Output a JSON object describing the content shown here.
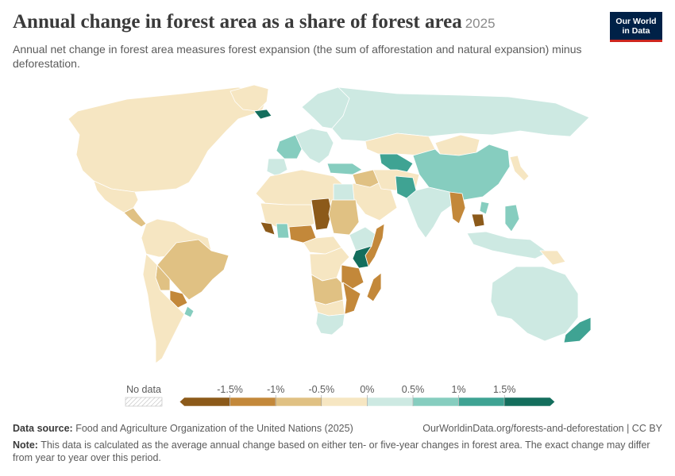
{
  "header": {
    "title": "Annual change in forest area as a share of forest area",
    "year": "2025",
    "subtitle": "Annual net change in forest area measures forest expansion (the sum of afforestation and natural expansion) minus deforestation."
  },
  "logo": {
    "line1": "Our World",
    "line2": "in Data"
  },
  "legend": {
    "no_data_label": "No data",
    "tick_labels": [
      "-1.5%",
      "-1%",
      "-0.5%",
      "0%",
      "0.5%",
      "1%",
      "1.5%"
    ],
    "bins": [
      {
        "range": "< -1.5%",
        "color": "#8c5a1a"
      },
      {
        "range": "-1.5% to -1%",
        "color": "#c3883a"
      },
      {
        "range": "-1% to -0.5%",
        "color": "#e0c183"
      },
      {
        "range": "-0.5% to 0%",
        "color": "#f6e6c2"
      },
      {
        "range": "0% to 0.5%",
        "color": "#cde9e2"
      },
      {
        "range": "0.5% to 1%",
        "color": "#86cdbf"
      },
      {
        "range": "1% to 1.5%",
        "color": "#3fa393"
      },
      {
        "range": "> 1.5%",
        "color": "#146e5d"
      }
    ]
  },
  "footer": {
    "source_label": "Data source:",
    "source_text": "Food and Agriculture Organization of the United Nations (2025)",
    "url": "OurWorldinData.org/forests-and-deforestation | CC BY",
    "note_label": "Note:",
    "note_text": "This data is calculated as the average annual change based on either ten- or five-year changes in forest area. The exact change may differ from year to year over this period."
  },
  "regions": [
    {
      "name": "Canada / USA",
      "bin": 3
    },
    {
      "name": "Greenland",
      "bin": 3
    },
    {
      "name": "Mexico",
      "bin": 3
    },
    {
      "name": "Central America",
      "bin": 2
    },
    {
      "name": "Northern South America",
      "bin": 3
    },
    {
      "name": "Brazil",
      "bin": 2
    },
    {
      "name": "Bolivia",
      "bin": 2
    },
    {
      "name": "Paraguay",
      "bin": 1
    },
    {
      "name": "Uruguay",
      "bin": 5
    },
    {
      "name": "Argentina / Chile",
      "bin": 3
    },
    {
      "name": "Iceland",
      "bin": 7
    },
    {
      "name": "Scandinavia",
      "bin": 4
    },
    {
      "name": "Western Europe",
      "bin": 4
    },
    {
      "name": "France",
      "bin": 5
    },
    {
      "name": "Spain",
      "bin": 4
    },
    {
      "name": "Russia",
      "bin": 4
    },
    {
      "name": "Turkey",
      "bin": 5
    },
    {
      "name": "Caucasus / Central Asia",
      "bin": 6
    },
    {
      "name": "Kazakhstan",
      "bin": 3
    },
    {
      "name": "Mongolia",
      "bin": 3
    },
    {
      "name": "China",
      "bin": 5
    },
    {
      "name": "Korea / Japan",
      "bin": 3
    },
    {
      "name": "Middle East",
      "bin": 3
    },
    {
      "name": "Iraq / Syria",
      "bin": 2
    },
    {
      "name": "Iran / Afghanistan",
      "bin": 3
    },
    {
      "name": "Pakistan",
      "bin": 6
    },
    {
      "name": "India",
      "bin": 4
    },
    {
      "name": "Myanmar",
      "bin": 1
    },
    {
      "name": "Cambodia",
      "bin": 0
    },
    {
      "name": "Vietnam",
      "bin": 5
    },
    {
      "name": "Philippines",
      "bin": 5
    },
    {
      "name": "Indonesia",
      "bin": 4
    },
    {
      "name": "Papua New Guinea",
      "bin": 3
    },
    {
      "name": "Australia",
      "bin": 4
    },
    {
      "name": "New Zealand",
      "bin": 6
    },
    {
      "name": "North Africa",
      "bin": 3
    },
    {
      "name": "Mali / Niger",
      "bin": 3
    },
    {
      "name": "Chad",
      "bin": 0
    },
    {
      "name": "Sudan",
      "bin": 2
    },
    {
      "name": "Egypt",
      "bin": 4
    },
    {
      "name": "West Africa coast",
      "bin": 0
    },
    {
      "name": "Ghana",
      "bin": 5
    },
    {
      "name": "Nigeria",
      "bin": 1
    },
    {
      "name": "Ethiopia",
      "bin": 4
    },
    {
      "name": "Somalia",
      "bin": 1
    },
    {
      "name": "Kenya",
      "bin": 7
    },
    {
      "name": "Tanzania",
      "bin": 1
    },
    {
      "name": "Central Africa",
      "bin": 3
    },
    {
      "name": "DR Congo",
      "bin": 3
    },
    {
      "name": "Angola / Zambia",
      "bin": 2
    },
    {
      "name": "Mozambique",
      "bin": 1
    },
    {
      "name": "Southern Africa",
      "bin": 3
    },
    {
      "name": "South Africa",
      "bin": 4
    },
    {
      "name": "Madagascar",
      "bin": 1
    }
  ]
}
